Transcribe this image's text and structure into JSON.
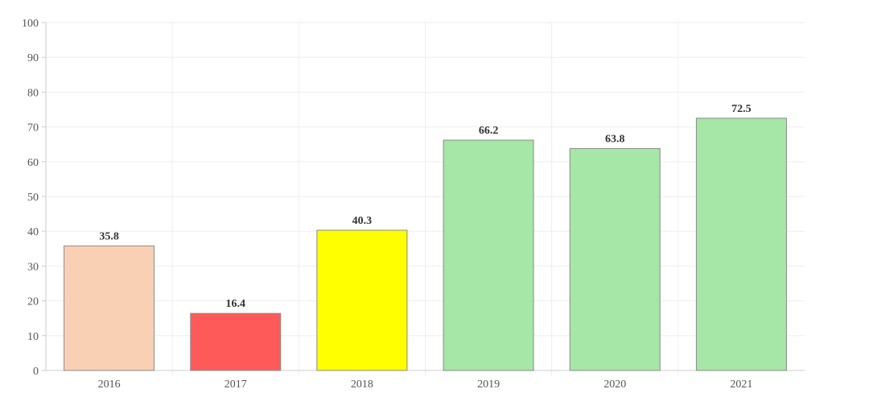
{
  "chart_data": {
    "type": "bar",
    "title": "",
    "xlabel": "",
    "ylabel": "",
    "categories": [
      "2016",
      "2017",
      "2018",
      "2019",
      "2020",
      "2021"
    ],
    "values": [
      35.8,
      16.4,
      40.3,
      66.2,
      63.8,
      72.5
    ],
    "value_labels": [
      "35.8",
      "16.4",
      "40.3",
      "66.2",
      "63.8",
      "72.5"
    ],
    "bar_colors": [
      "#f9d0b4",
      "#ff5a5a",
      "#ffff00",
      "#a6e6a6",
      "#a6e6a6",
      "#a6e6a6"
    ],
    "ylim": [
      0,
      100
    ],
    "y_ticks": [
      "0",
      "10",
      "20",
      "30",
      "40",
      "50",
      "60",
      "70",
      "80",
      "90",
      "100"
    ],
    "grid": true,
    "legend": "none"
  }
}
